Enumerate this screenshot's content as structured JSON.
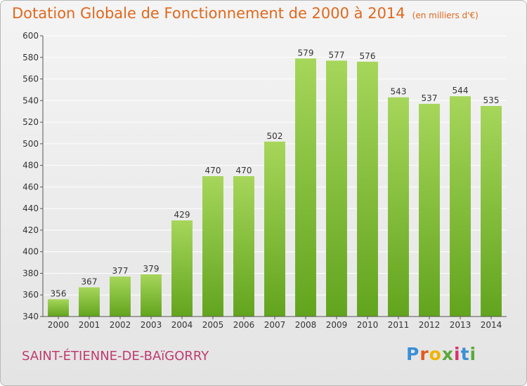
{
  "header": {
    "title": "Dotation Globale de Fonctionnement de 2000 à 2014",
    "unit": "(en milliers d'€)"
  },
  "footer": {
    "commune": "SAINT-ÉTIENNE-DE-BAïGORRY",
    "brand_letters": [
      "P",
      "r",
      "o",
      "x",
      "i",
      "t",
      "i"
    ],
    "brand_colors": [
      "#3a8fd6",
      "#e05a1e",
      "#f0b400",
      "#5aa83a",
      "#d8326e",
      "#3a8fd6",
      "#5aa83a"
    ]
  },
  "colors": {
    "bar_top": "#a6d65a",
    "bar_bottom": "#62a41e",
    "axis": "#555555",
    "grid": "#ffffff"
  },
  "chart_data": {
    "type": "bar",
    "title": "Dotation Globale de Fonctionnement de 2000 à 2014",
    "xlabel": "",
    "ylabel": "",
    "categories": [
      "2000",
      "2001",
      "2002",
      "2003",
      "2004",
      "2005",
      "2006",
      "2007",
      "2008",
      "2009",
      "2010",
      "2011",
      "2012",
      "2013",
      "2014"
    ],
    "values": [
      356,
      367,
      377,
      379,
      429,
      470,
      470,
      502,
      579,
      577,
      576,
      543,
      537,
      544,
      535
    ],
    "ylim": [
      340,
      600
    ],
    "yticks": [
      340,
      360,
      380,
      400,
      420,
      440,
      460,
      480,
      500,
      520,
      540,
      560,
      580,
      600
    ],
    "grid": true,
    "data_labels": true
  }
}
